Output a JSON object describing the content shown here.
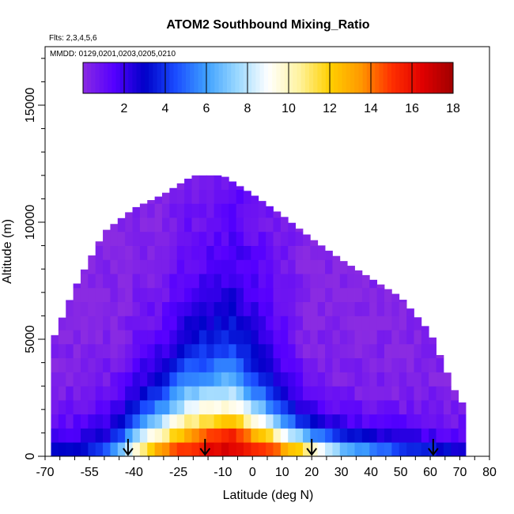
{
  "chart_data": {
    "type": "heatmap",
    "title": "ATOM2 Southbound Mixing_Ratio",
    "flights_note": "Flts: 2,3,4,5,6",
    "dates_note": "MMDD: 0129,0201,0203,0205,0210",
    "xlabel": "Latitude (deg N)",
    "ylabel": "Altitude (m)",
    "xlim": [
      -70,
      80
    ],
    "ylim": [
      0,
      17500
    ],
    "x_ticks": [
      -70,
      -55,
      -40,
      -25,
      -10,
      0,
      10,
      20,
      30,
      40,
      50,
      60,
      70,
      80
    ],
    "y_ticks": [
      0,
      5000,
      10000,
      15000
    ],
    "colorbar": {
      "range": [
        0,
        18
      ],
      "ticks": [
        2,
        4,
        6,
        8,
        10,
        12,
        14,
        16,
        18
      ],
      "colors": [
        "#8a2be2",
        "#5500ff",
        "#0000c8",
        "#1a4cff",
        "#3ea0ff",
        "#9ad8ff",
        "#ffffff",
        "#fff3a0",
        "#ffd000",
        "#ff9900",
        "#ff3000",
        "#e00000",
        "#a00000"
      ]
    },
    "profile": {
      "lat": [
        -68,
        -60,
        -50,
        -40,
        -30,
        -20,
        -10,
        0,
        10,
        20,
        30,
        40,
        50,
        60,
        70
      ],
      "top_altitude": [
        4800,
        7200,
        9600,
        10600,
        11200,
        12000,
        12000,
        11200,
        10300,
        9300,
        8400,
        7600,
        6800,
        5300,
        2300
      ]
    },
    "surface": {
      "lat": [
        -68,
        -60,
        -50,
        -44,
        -40,
        -34,
        -28,
        -22,
        -16,
        -10,
        -4,
        0,
        6,
        12,
        18,
        24,
        30,
        40,
        50,
        60,
        70
      ],
      "value": [
        4.0,
        4.0,
        5.0,
        8.5,
        11.0,
        14.0,
        16.0,
        16.5,
        17.0,
        17.5,
        17.0,
        17.0,
        17.0,
        16.5,
        15.0,
        12.0,
        9.0,
        7.5,
        6.0,
        5.0,
        3.5
      ]
    },
    "scale_height": [
      1100,
      1100,
      1300,
      1500,
      1700,
      2000,
      2200,
      2400,
      2200,
      2000,
      1700,
      1500,
      1300,
      1100,
      1000,
      950,
      900,
      850,
      850,
      850,
      850
    ],
    "background_value": 0.2,
    "core": {
      "lat_center": -6,
      "lat_halfwidth": 24,
      "peak_value": 6.0,
      "decay_altitude": 6000
    },
    "flight_markers_lat": [
      -42,
      -16,
      20,
      61
    ]
  }
}
